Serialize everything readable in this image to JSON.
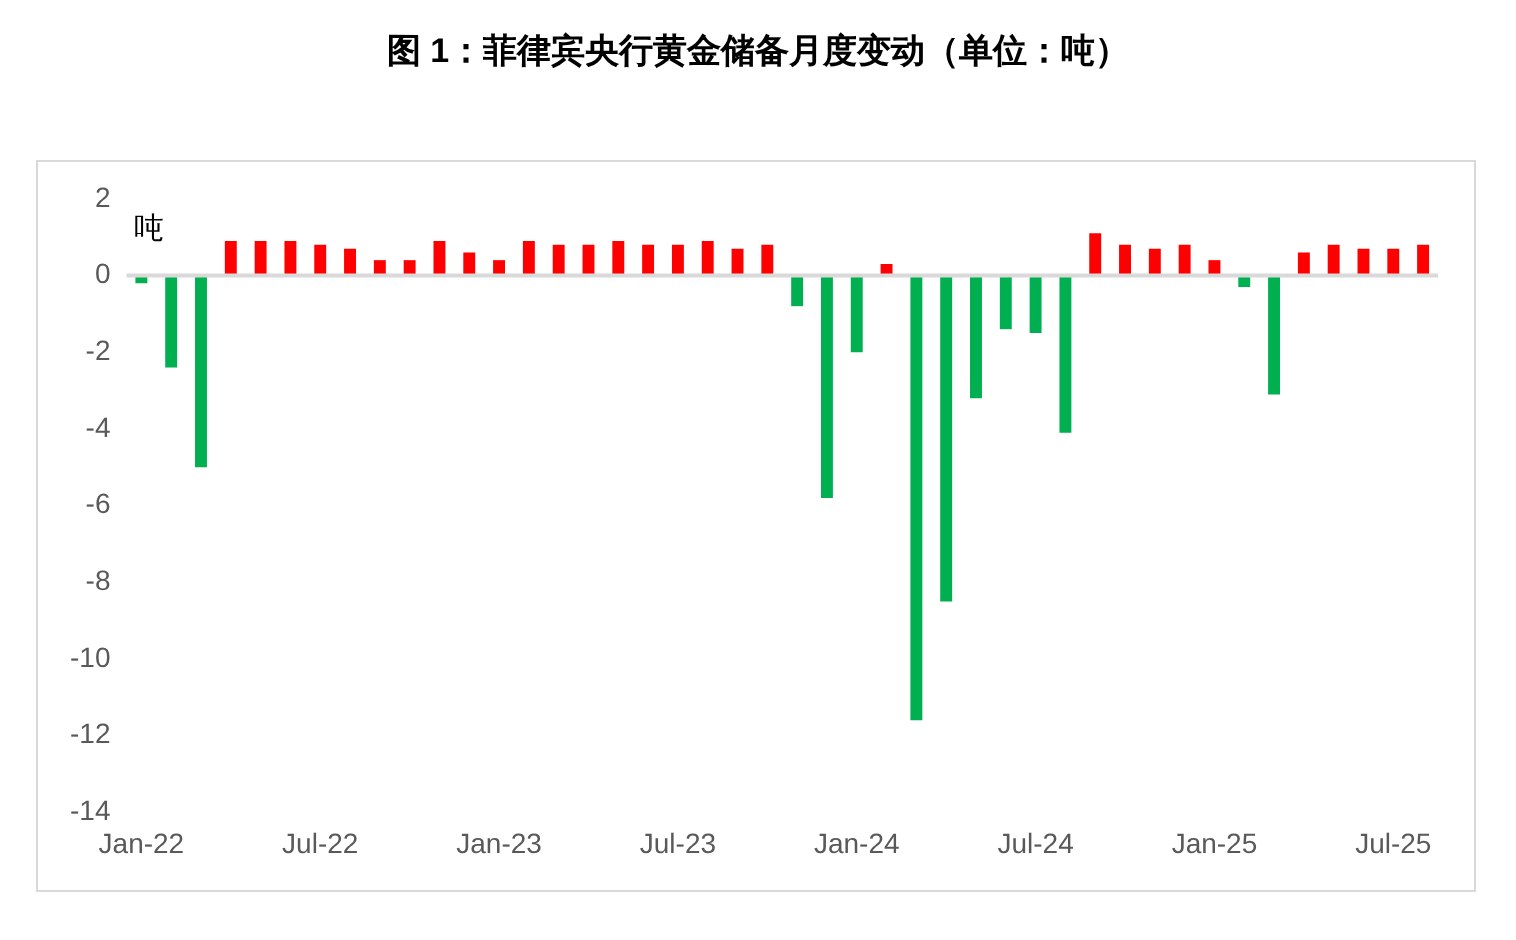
{
  "chart_data": {
    "type": "bar",
    "title": "图 1：菲律宾央行黄金储备月度变动（单位：吨）",
    "ylabel": "吨",
    "categories": [
      "Jan-22",
      null,
      null,
      null,
      null,
      null,
      "Jul-22",
      null,
      null,
      null,
      null,
      null,
      "Jan-23",
      null,
      null,
      null,
      null,
      null,
      "Jul-23",
      null,
      null,
      null,
      null,
      null,
      "Jan-24",
      null,
      null,
      null,
      null,
      null,
      "Jul-24",
      null,
      null,
      null,
      null,
      null,
      "Jan-25",
      null,
      null,
      null,
      null,
      null,
      "Jul-25",
      null
    ],
    "values": [
      -0.2,
      -2.4,
      -5.0,
      0.9,
      0.9,
      0.9,
      0.8,
      0.7,
      0.4,
      0.4,
      0.9,
      0.6,
      0.4,
      0.9,
      0.8,
      0.8,
      0.9,
      0.8,
      0.8,
      0.9,
      0.7,
      0.8,
      -0.8,
      -5.8,
      -2.0,
      0.3,
      -11.6,
      -8.5,
      -3.2,
      -1.4,
      -1.5,
      -4.1,
      1.1,
      0.8,
      0.7,
      0.8,
      0.4,
      -0.3,
      -3.1,
      0.6,
      0.8,
      0.7,
      0.7,
      0.8
    ],
    "colors": [
      "#00b050",
      "#00b050",
      "#00b050",
      "#ff0000",
      "#ff0000",
      "#ff0000",
      "#ff0000",
      "#ff0000",
      "#ff0000",
      "#ff0000",
      "#ff0000",
      "#ff0000",
      "#ff0000",
      "#ff0000",
      "#ff0000",
      "#ff0000",
      "#ff0000",
      "#ff0000",
      "#ff0000",
      "#ff0000",
      "#ff0000",
      "#ff0000",
      "#00b050",
      "#00b050",
      "#00b050",
      "#ff0000",
      "#00b050",
      "#00b050",
      "#00b050",
      "#00b050",
      "#00b050",
      "#00b050",
      "#ff0000",
      "#ff0000",
      "#ff0000",
      "#ff0000",
      "#ff0000",
      "#00b050",
      "#00b050",
      "#ff0000",
      "#ff0000",
      "#ff0000",
      "#ff0000",
      "#ff0000"
    ],
    "ylim": [
      -14,
      2
    ],
    "yticks": [
      -14,
      -12,
      -10,
      -8,
      -6,
      -4,
      -2,
      0,
      2
    ]
  }
}
